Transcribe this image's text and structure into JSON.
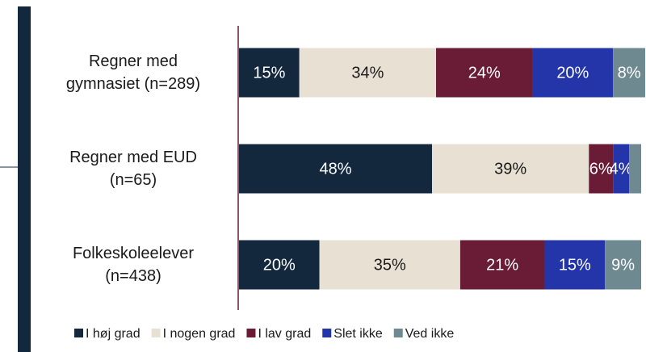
{
  "chart_data": {
    "type": "stacked-bar-horizontal",
    "categories": [
      "Regner med gymnasiet (n=289)",
      "Regner med EUD (n=65)",
      "Folkeskoleelever (n=438)"
    ],
    "xlim": [
      0,
      100
    ],
    "series": [
      {
        "name": "I høj grad",
        "color": "#13283d",
        "values": [
          15,
          48,
          20
        ],
        "value_labels": [
          "15%",
          "48%",
          "20%"
        ]
      },
      {
        "name": "I nogen grad",
        "color": "#e8e0d3",
        "values": [
          34,
          39,
          35
        ],
        "value_labels": [
          "34%",
          "39%",
          "35%"
        ]
      },
      {
        "name": "I lav grad",
        "color": "#6a1b36",
        "values": [
          24,
          6,
          21
        ],
        "value_labels": [
          "24%",
          "6%",
          "21%"
        ]
      },
      {
        "name": "Slet ikke",
        "color": "#2335a8",
        "values": [
          20,
          4,
          15
        ],
        "value_labels": [
          "20%",
          "4%",
          "15%"
        ]
      },
      {
        "name": "Ved ikke",
        "color": "#6e8a90",
        "values": [
          8,
          3,
          9
        ],
        "value_labels": [
          "8%",
          null,
          "9%"
        ]
      }
    ],
    "legend": "bottom"
  }
}
